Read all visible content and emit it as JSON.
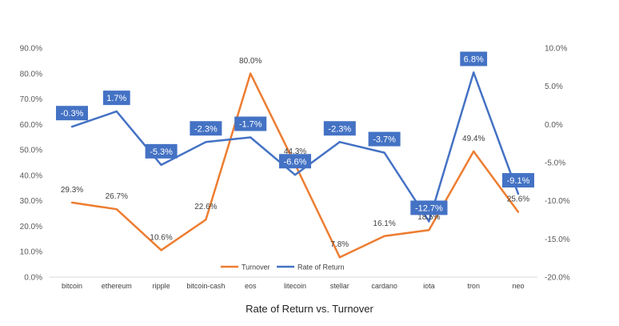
{
  "caption": "Rate of Return vs. Turnover",
  "chart_data": {
    "type": "line",
    "categories": [
      "bitcoin",
      "ethereum",
      "ripple",
      "bitcoin-cash",
      "eos",
      "litecoin",
      "stellar",
      "cardano",
      "iota",
      "tron",
      "neo"
    ],
    "series": [
      {
        "name": "Turnover",
        "axis": "left",
        "color": "#ED7D31",
        "values": [
          29.3,
          26.7,
          10.6,
          22.6,
          80.0,
          44.3,
          7.8,
          16.1,
          18.5,
          49.4,
          25.6
        ],
        "labels": [
          "29.3%",
          "26.7%",
          "10.6%",
          "22.6%",
          "80.0%",
          "44.3%",
          "7.8%",
          "16.1%",
          "18.5%",
          "49.4%",
          "25.6%"
        ]
      },
      {
        "name": "Rate of Return",
        "axis": "right",
        "color": "#4472C4",
        "values": [
          -0.3,
          1.7,
          -5.3,
          -2.3,
          -1.7,
          -6.6,
          -2.3,
          -3.7,
          -12.7,
          6.8,
          -9.1
        ],
        "labels": [
          "-0.3%",
          "1.7%",
          "-5.3%",
          "-2.3%",
          "-1.7%",
          "-6.6%",
          "-2.3%",
          "-3.7%",
          "-12.7%",
          "6.8%",
          "-9.1%"
        ]
      }
    ],
    "y_left": {
      "ylim": [
        0,
        90
      ],
      "ticks": [
        "0.0%",
        "10.0%",
        "20.0%",
        "30.0%",
        "40.0%",
        "50.0%",
        "60.0%",
        "70.0%",
        "80.0%",
        "90.0%"
      ]
    },
    "y_right": {
      "ylim": [
        -20,
        10
      ],
      "ticks": [
        "-20.0%",
        "-15.0%",
        "-10.0%",
        "-5.0%",
        "0.0%",
        "5.0%",
        "10.0%"
      ]
    },
    "grid": false,
    "legend_position": "bottom-center"
  }
}
